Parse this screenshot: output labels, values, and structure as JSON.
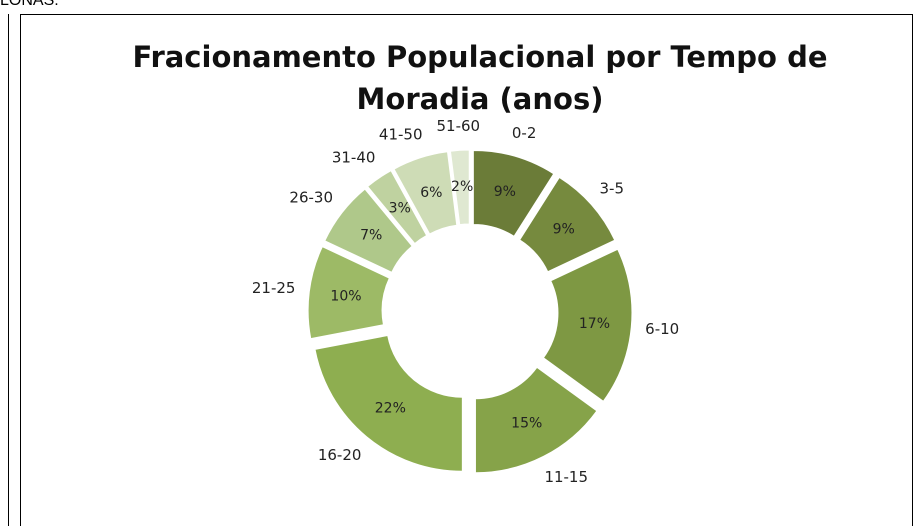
{
  "page_caption": "LONAS.",
  "chart_data": {
    "type": "donut",
    "title": "Fracionamento Populacional por Tempo de Moradia (anos)",
    "categories": [
      "0-2",
      "3-5",
      "6-10",
      "11-15",
      "16-20",
      "21-25",
      "26-30",
      "31-40",
      "41-50",
      "51-60"
    ],
    "values": [
      9,
      9,
      17,
      15,
      22,
      10,
      7,
      3,
      6,
      2
    ],
    "value_labels": [
      "9%",
      "9%",
      "17%",
      "15%",
      "22%",
      "10%",
      "7%",
      "3%",
      "6%",
      "2%"
    ],
    "colors": [
      "#6b7c38",
      "#768a3e",
      "#7e9843",
      "#86a349",
      "#8eae50",
      "#9dba66",
      "#afc88a",
      "#bfd2a0",
      "#cedcb6",
      "#dfe8d1"
    ]
  }
}
